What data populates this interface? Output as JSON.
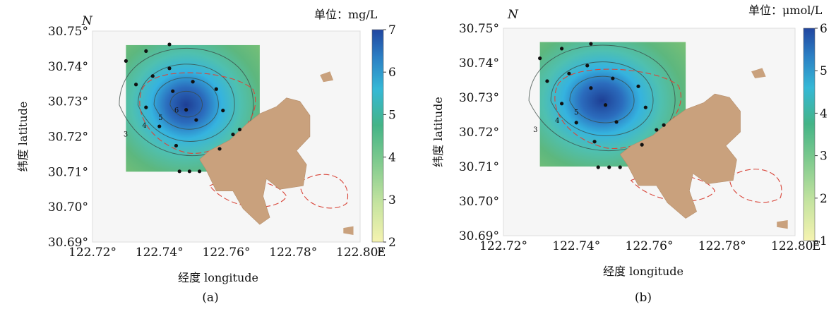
{
  "chart_data": [
    {
      "type": "heatmap",
      "panel_label": "(a)",
      "xlabel": "经度  longitude",
      "ylabel": "纬度  latitude",
      "north_label": "N",
      "east_label": "E",
      "x_ticks": [
        "122.72°",
        "122.74°",
        "122.76°",
        "122.78°",
        "122.80°"
      ],
      "y_ticks": [
        "30.69°",
        "30.70°",
        "30.71°",
        "30.72°",
        "30.73°",
        "30.74°",
        "30.75°"
      ],
      "xlim": [
        122.72,
        122.8
      ],
      "ylim": [
        30.69,
        30.75
      ],
      "colorbar": {
        "unit": "单位：mg/L",
        "range": [
          2,
          7
        ],
        "ticks": [
          "2",
          "3",
          "4",
          "5",
          "6",
          "7"
        ],
        "colors": [
          "#f5f3b0",
          "#c6e4a0",
          "#7fca8e",
          "#44b487",
          "#35b8d6",
          "#2b7fc4",
          "#2146a0"
        ]
      },
      "grid_extent": {
        "lon": [
          122.73,
          122.77
        ],
        "lat": [
          30.71,
          30.746
        ]
      },
      "peak": {
        "lon": 122.748,
        "lat": 30.729,
        "value": 6.8
      },
      "contour_levels": [
        3,
        4,
        5,
        6
      ],
      "stations": [
        [
          122.743,
          30.7462
        ],
        [
          122.736,
          30.7443
        ],
        [
          122.73,
          30.7415
        ],
        [
          122.738,
          30.7372
        ],
        [
          122.743,
          30.7394
        ],
        [
          122.733,
          30.7348
        ],
        [
          122.75,
          30.7356
        ],
        [
          122.744,
          30.7329
        ],
        [
          122.757,
          30.7335
        ],
        [
          122.748,
          30.7276
        ],
        [
          122.736,
          30.7283
        ],
        [
          122.751,
          30.7247
        ],
        [
          122.74,
          30.7229
        ],
        [
          122.759,
          30.7274
        ],
        [
          122.762,
          30.7206
        ],
        [
          122.764,
          30.722
        ],
        [
          122.745,
          30.7174
        ],
        [
          122.758,
          30.7165
        ],
        [
          122.746,
          30.7101
        ],
        [
          122.749,
          30.7101
        ],
        [
          122.752,
          30.7101
        ]
      ]
    },
    {
      "type": "heatmap",
      "panel_label": "(b)",
      "xlabel": "经度  longitude",
      "ylabel": "纬度  latitude",
      "north_label": "N",
      "east_label": "E",
      "x_ticks": [
        "122.72°",
        "122.74°",
        "122.76°",
        "122.78°",
        "122.80°"
      ],
      "y_ticks": [
        "30.69°",
        "30.70°",
        "30.71°",
        "30.72°",
        "30.73°",
        "30.74°",
        "30.75°"
      ],
      "xlim": [
        122.72,
        122.8
      ],
      "ylim": [
        30.69,
        30.75
      ],
      "colorbar": {
        "unit": "单位：μmol/L",
        "range": [
          1,
          6
        ],
        "ticks": [
          "1",
          "2",
          "3",
          "4",
          "5",
          "6"
        ],
        "colors": [
          "#f5f3b0",
          "#c6e4a0",
          "#7fca8e",
          "#44b487",
          "#35b8d6",
          "#2b7fc4",
          "#2146a0"
        ]
      },
      "grid_extent": {
        "lon": [
          122.73,
          122.77
        ],
        "lat": [
          30.71,
          30.746
        ]
      },
      "peak": {
        "lon": 122.747,
        "lat": 30.729,
        "value": 5.8
      },
      "contour_levels": [
        3,
        4,
        5
      ],
      "stations": [
        [
          122.744,
          30.7455
        ],
        [
          122.736,
          30.7441
        ],
        [
          122.73,
          30.7413
        ],
        [
          122.738,
          30.7369
        ],
        [
          122.743,
          30.7392
        ],
        [
          122.732,
          30.7347
        ],
        [
          122.75,
          30.7355
        ],
        [
          122.744,
          30.7327
        ],
        [
          122.757,
          30.7332
        ],
        [
          122.748,
          30.7278
        ],
        [
          122.736,
          30.7282
        ],
        [
          122.751,
          30.7229
        ],
        [
          122.74,
          30.7227
        ],
        [
          122.759,
          30.7271
        ],
        [
          122.762,
          30.7206
        ],
        [
          122.764,
          30.722
        ],
        [
          122.745,
          30.7172
        ],
        [
          122.758,
          30.7163
        ],
        [
          122.746,
          30.7098
        ],
        [
          122.749,
          30.7098
        ],
        [
          122.752,
          30.7098
        ]
      ]
    }
  ]
}
